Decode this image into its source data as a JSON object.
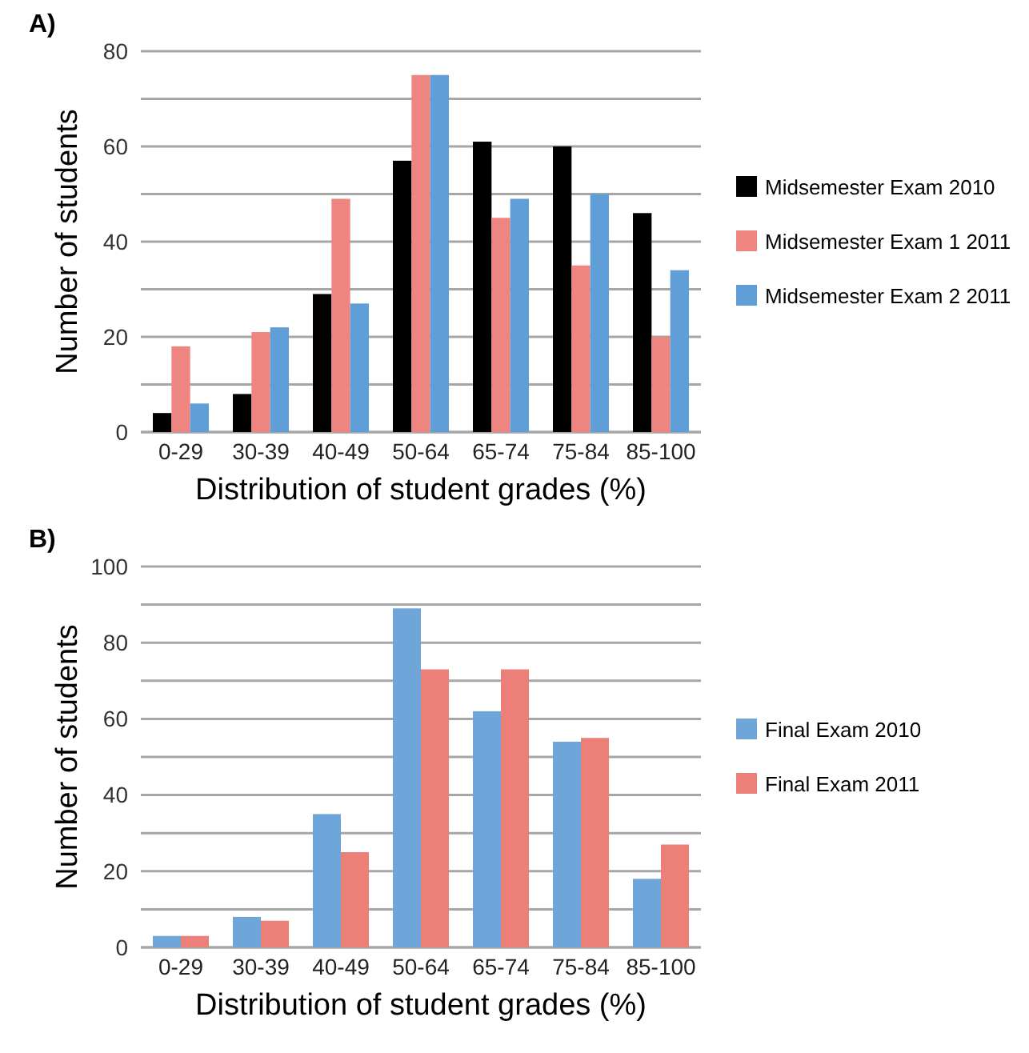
{
  "chart_data": [
    {
      "type": "bar",
      "title": "A)",
      "xlabel": "Distribution of student grades (%)",
      "ylabel": "Number of students",
      "categories": [
        "0-29",
        "30-39",
        "40-49",
        "50-64",
        "65-74",
        "75-84",
        "85-100"
      ],
      "series": [
        {
          "name": "Midsemester Exam 2010",
          "color": "#000000",
          "values": [
            4,
            8,
            29,
            57,
            61,
            60,
            46
          ]
        },
        {
          "name": "Midsemester Exam 1 2011",
          "color": "#ee8580",
          "values": [
            18,
            21,
            49,
            75,
            45,
            35,
            20
          ]
        },
        {
          "name": "Midsemester Exam 2 2011",
          "color": "#5f9ed6",
          "values": [
            6,
            22,
            27,
            75,
            49,
            50,
            34
          ]
        }
      ],
      "ylim": [
        0,
        80
      ],
      "yticks": [
        0,
        {
          "value": 10,
          "label": null
        },
        20,
        {
          "value": 30,
          "label": null
        },
        40,
        {
          "value": 50,
          "label": null
        },
        60,
        {
          "value": 70,
          "label": null
        },
        80
      ],
      "grid": "y",
      "legend": "right"
    },
    {
      "type": "bar",
      "title": "B)",
      "xlabel": "Distribution of student grades (%)",
      "ylabel": "Number of students",
      "categories": [
        "0-29",
        "30-39",
        "40-49",
        "50-64",
        "65-74",
        "75-84",
        "85-100"
      ],
      "series": [
        {
          "name": "Final Exam 2010",
          "color": "#6fa6da",
          "values": [
            3,
            8,
            35,
            89,
            62,
            54,
            18
          ]
        },
        {
          "name": "Final Exam 2011",
          "color": "#ec7f78",
          "values": [
            3,
            7,
            25,
            73,
            73,
            55,
            27
          ]
        }
      ],
      "ylim": [
        0,
        100
      ],
      "yticks": [
        0,
        {
          "value": 10,
          "label": null
        },
        20,
        {
          "value": 30,
          "label": null
        },
        40,
        {
          "value": 50,
          "label": null
        },
        60,
        {
          "value": 70,
          "label": null
        },
        80,
        {
          "value": 90,
          "label": null
        },
        100
      ],
      "grid": "y",
      "legend": "right"
    }
  ]
}
